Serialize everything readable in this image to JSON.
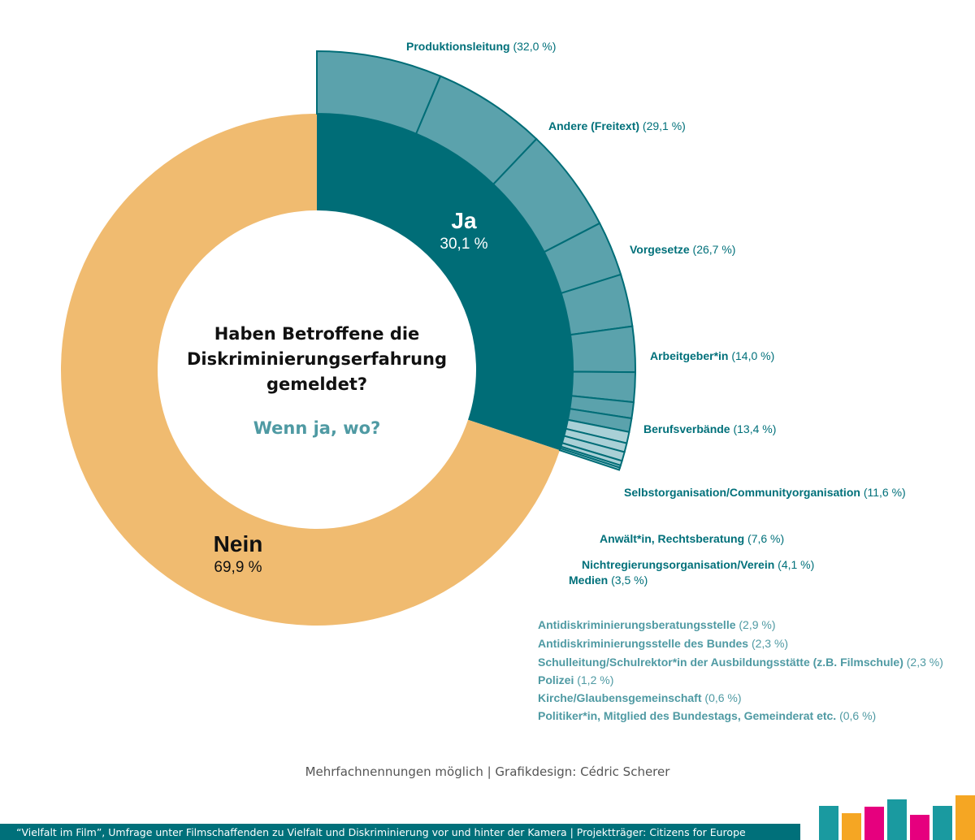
{
  "chart_data": {
    "type": "pie",
    "title": "Haben Betroffene die Diskriminierungserfahrung gemeldet?",
    "subtitle": "Wenn ja, wo?",
    "title_lines": [
      "Haben Betroffene die",
      "Diskriminierungserfahrung",
      "gemeldet?"
    ],
    "inner_ring": [
      {
        "name": "Ja",
        "value": 30.1,
        "value_label": "30,1 %",
        "color": "#006d77"
      },
      {
        "name": "Nein",
        "value": 69.9,
        "value_label": "69,9 %",
        "color": "#f0bb70"
      }
    ],
    "outer_ring": [
      {
        "name": "Produktionsleitung",
        "value": 32.0,
        "value_label": "(32,0 %)"
      },
      {
        "name": "Andere (Freitext)",
        "value": 29.1,
        "value_label": "(29,1 %)"
      },
      {
        "name": "Vorgesetze",
        "value": 26.7,
        "value_label": "(26,7 %)"
      },
      {
        "name": "Arbeitgeber*in",
        "value": 14.0,
        "value_label": "(14,0 %)"
      },
      {
        "name": "Berufsverbände",
        "value": 13.4,
        "value_label": "(13,4 %)"
      },
      {
        "name": "Selbstorganisation/Communityorganisation",
        "value": 11.6,
        "value_label": "(11,6 %)"
      },
      {
        "name": "Anwält*in, Rechtsberatung",
        "value": 7.6,
        "value_label": "(7,6 %)"
      },
      {
        "name": "Nichtregierungsorganisation/Verein",
        "value": 4.1,
        "value_label": "(4,1 %)"
      },
      {
        "name": "Medien",
        "value": 3.5,
        "value_label": "(3,5 %)"
      },
      {
        "name": "Antidiskriminierungsberatungsstelle",
        "value": 2.9,
        "value_label": "(2,9 %)"
      },
      {
        "name": "Antidiskriminierungsstelle des Bundes",
        "value": 2.3,
        "value_label": "(2,3 %)"
      },
      {
        "name": "Schulleitung/Schulrektor*in der Ausbildungsstätte (z.B. Filmschule)",
        "value": 2.3,
        "value_label": "(2,3 %)"
      },
      {
        "name": "Polizei",
        "value": 1.2,
        "value_label": "(1,2 %)"
      },
      {
        "name": "Kirche/Glaubensgemeinschaft",
        "value": 0.6,
        "value_label": "(0,6 %)"
      },
      {
        "name": "Politiker*in, Mitglied des Bundestags, Gemeinderat etc.",
        "value": 0.6,
        "value_label": "(0,6 %)"
      }
    ],
    "colors": {
      "outer": "#5ba2ac",
      "outer_small": "#a9d0d6",
      "label_dark": "#00707a",
      "label_light": "#4f9aa3",
      "subtitle": "#4f9aa3"
    }
  },
  "footer": {
    "note": "Mehrfachnennungen möglich | Grafikdesign: Cédric Scherer",
    "source": "“Vielfalt im Film”, Umfrage unter Filmschaffenden zu Vielfalt und Diskriminierung vor und hinter der Kamera | Projektträger: Citizens for Europe"
  },
  "logo_bar_colors": [
    "#1a9aa0",
    "#f5a623",
    "#e6007e",
    "#1a9aa0",
    "#e6007e",
    "#1a9aa0",
    "#f5a623"
  ]
}
